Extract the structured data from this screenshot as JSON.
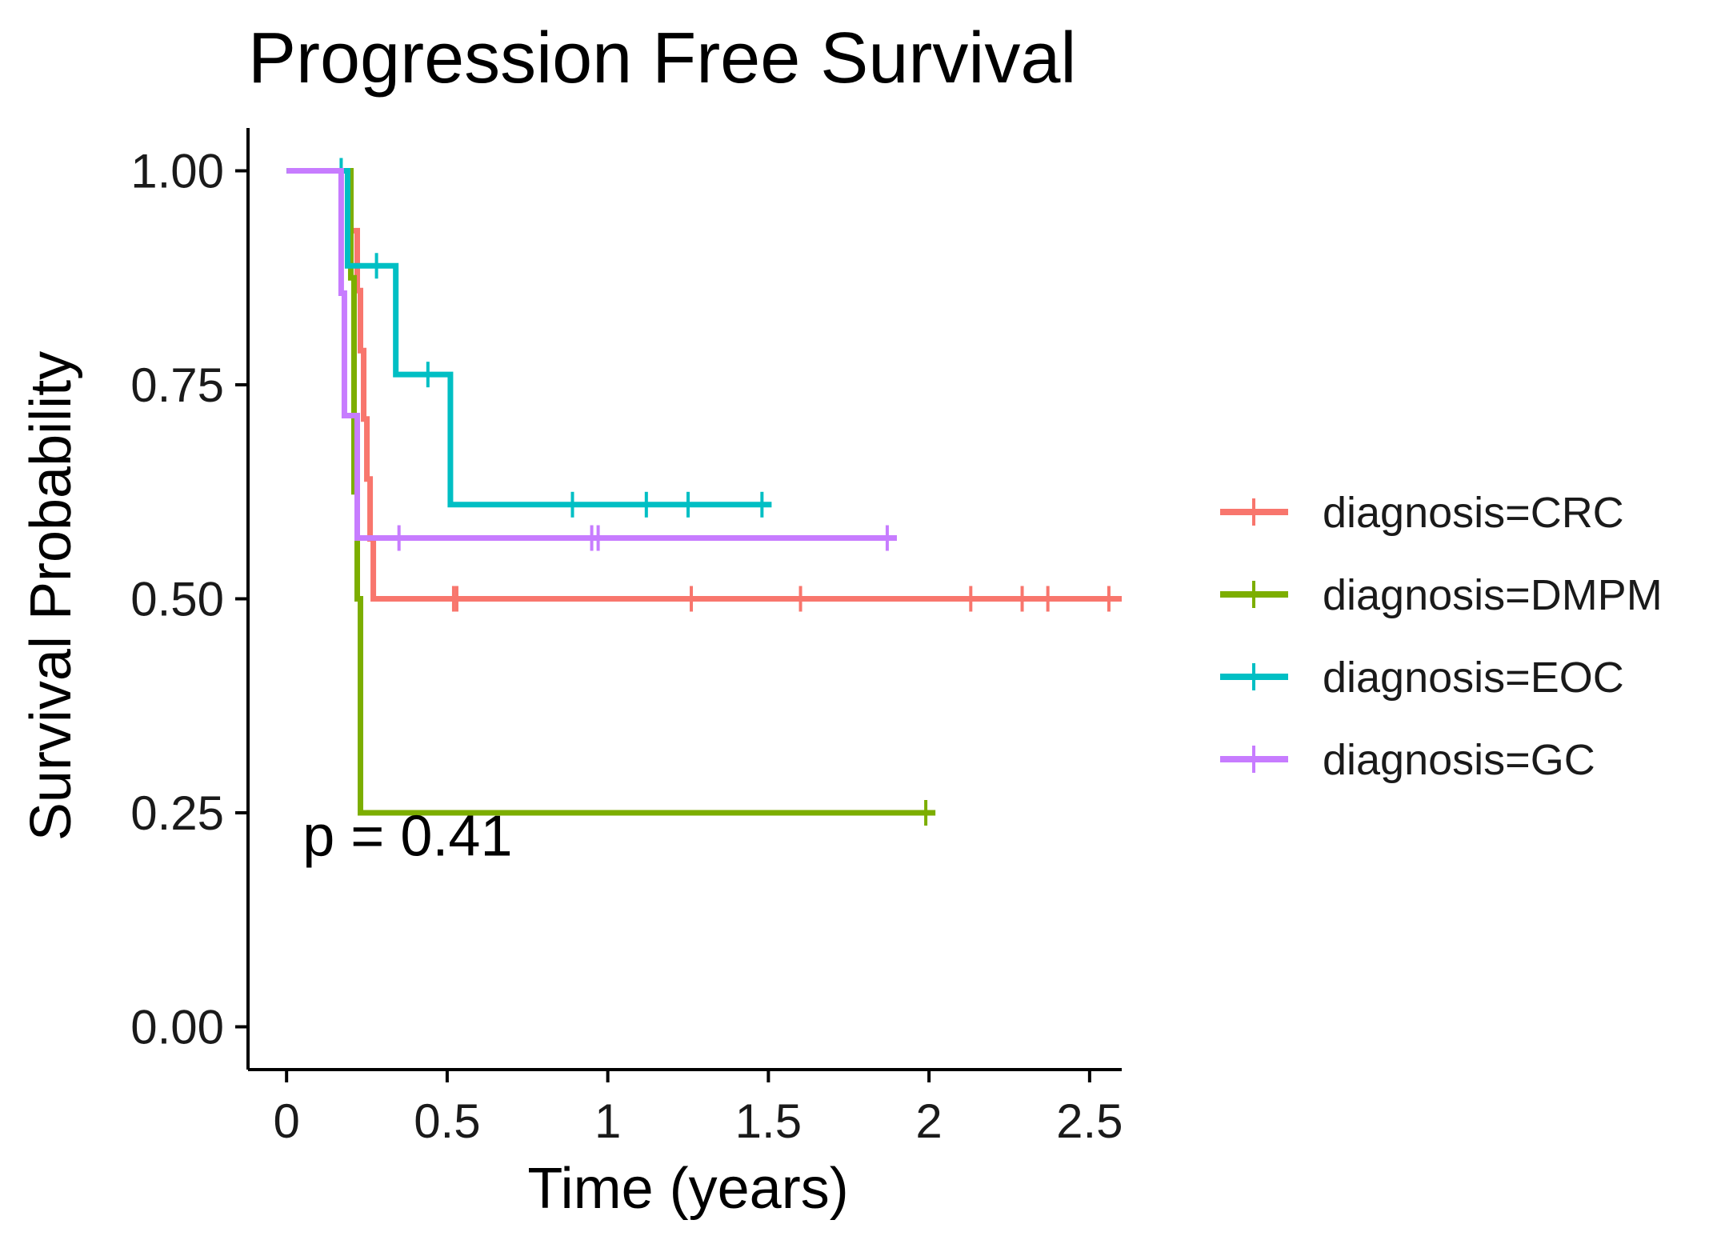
{
  "chart_data": {
    "type": "line",
    "subtype": "kaplan-meier-step",
    "title": "Progression Free Survival",
    "xlabel": "Time (years)",
    "ylabel": "Survival Probability",
    "xlim": [
      -0.12,
      2.6
    ],
    "ylim": [
      -0.05,
      1.05
    ],
    "x_ticks": [
      0,
      0.5,
      1,
      1.5,
      2,
      2.5
    ],
    "x_tick_labels": [
      "0",
      "0.5",
      "1",
      "1.5",
      "2",
      "2.5"
    ],
    "y_ticks": [
      0,
      0.25,
      0.5,
      0.75,
      1.0
    ],
    "y_tick_labels": [
      "0.00",
      "0.25",
      "0.50",
      "0.75",
      "1.00"
    ],
    "grid": false,
    "legend_position": "right",
    "annotation": "p = 0.41",
    "annotation_pos": [
      0.05,
      0.2
    ],
    "series": [
      {
        "name": "diagnosis=CRC",
        "color": "#F8766D",
        "steps": [
          [
            0,
            1.0
          ],
          [
            0.2,
            0.93
          ],
          [
            0.22,
            0.86
          ],
          [
            0.23,
            0.79
          ],
          [
            0.24,
            0.71
          ],
          [
            0.25,
            0.64
          ],
          [
            0.26,
            0.57
          ],
          [
            0.27,
            0.5
          ],
          [
            2.6,
            0.5
          ]
        ],
        "censors": [
          [
            0.52,
            0.5
          ],
          [
            0.53,
            0.5
          ],
          [
            1.26,
            0.5
          ],
          [
            1.6,
            0.5
          ],
          [
            2.13,
            0.5
          ],
          [
            2.29,
            0.5
          ],
          [
            2.37,
            0.5
          ],
          [
            2.56,
            0.5
          ]
        ]
      },
      {
        "name": "diagnosis=DMPM",
        "color": "#7CAE00",
        "steps": [
          [
            0,
            1.0
          ],
          [
            0.2,
            0.875
          ],
          [
            0.21,
            0.75
          ],
          [
            0.21,
            0.625
          ],
          [
            0.22,
            0.5
          ],
          [
            0.23,
            0.25
          ],
          [
            2.02,
            0.25
          ]
        ],
        "censors": [
          [
            1.99,
            0.25
          ]
        ]
      },
      {
        "name": "diagnosis=EOC",
        "color": "#00BFC4",
        "steps": [
          [
            0,
            1.0
          ],
          [
            0.19,
            0.889
          ],
          [
            0.34,
            0.762
          ],
          [
            0.51,
            0.61
          ],
          [
            1.51,
            0.61
          ]
        ],
        "censors": [
          [
            0.17,
            1.0
          ],
          [
            0.28,
            0.889
          ],
          [
            0.44,
            0.762
          ],
          [
            0.89,
            0.61
          ],
          [
            1.12,
            0.61
          ],
          [
            1.25,
            0.61
          ],
          [
            1.48,
            0.61
          ]
        ]
      },
      {
        "name": "diagnosis=GC",
        "color": "#C77CFF",
        "steps": [
          [
            0,
            1.0
          ],
          [
            0.17,
            0.857
          ],
          [
            0.18,
            0.714
          ],
          [
            0.22,
            0.571
          ],
          [
            1.9,
            0.571
          ]
        ],
        "censors": [
          [
            0.35,
            0.571
          ],
          [
            0.95,
            0.571
          ],
          [
            0.97,
            0.571
          ],
          [
            1.87,
            0.571
          ]
        ]
      }
    ]
  }
}
